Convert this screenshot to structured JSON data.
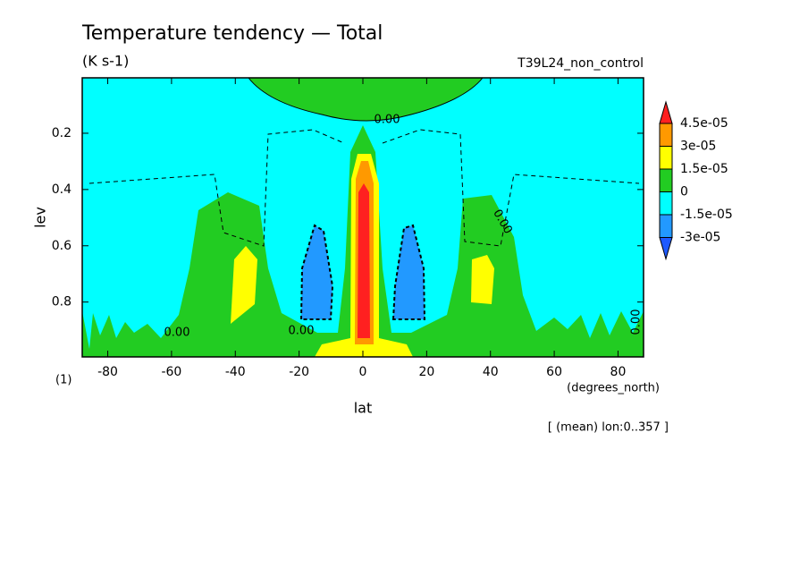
{
  "chart_data": {
    "type": "contour",
    "title": "Temperature tendency — Total",
    "subtitle": "(K s-1)",
    "run_label": "T39L24_non_control",
    "x_label": "lat",
    "x_unit": "(degrees_north)",
    "y_label": "lev",
    "y_unit": "(1)",
    "footnote": "[ (mean) lon:0..357 ]",
    "xlim": [
      -88,
      88
    ],
    "ylim": [
      0.995,
      0.003
    ],
    "xticks": [
      -80,
      -60,
      -40,
      -20,
      0,
      20,
      40,
      60,
      80
    ],
    "yticks": [
      0.2,
      0.4,
      0.6,
      0.8
    ],
    "contour_label": "0.00",
    "colorbar": {
      "ticks": [
        {
          "value": 4.5e-05,
          "label": "4.5e-05"
        },
        {
          "value": 3e-05,
          "label": "3e-05"
        },
        {
          "value": 1.5e-05,
          "label": "1.5e-05"
        },
        0,
        {
          "value": -1.5e-05,
          "label": "-1.5e-05"
        },
        {
          "value": -3e-05,
          "label": "-3e-05"
        }
      ],
      "colors": [
        "#ff2020",
        "#ff9900",
        "#ffff00",
        "#22cc22",
        "#00ffff",
        "#2299ff",
        "#1e5aff"
      ]
    }
  }
}
